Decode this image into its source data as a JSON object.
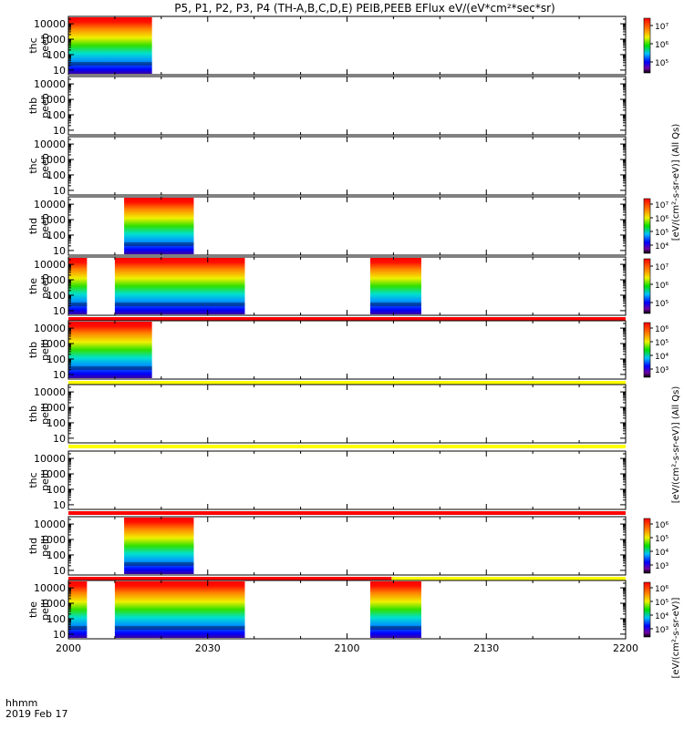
{
  "title": "P5, P1, P2, P3, P4 (TH-A,B,C,D,E) PEIB,PEEB EFlux eV/(eV*cm²*sec*sr)",
  "footer": {
    "line1": "hhmm",
    "line2": "2019 Feb 17"
  },
  "colorbar_caption": "[eV/(cm²-s-sr-eV)]",
  "colorbar_caption_all": "[eV/(cm²-s-sr-eV)] (All Qs)",
  "chart_data": {
    "type": "heatmap",
    "x_axis": {
      "range": [
        "2000",
        "2200"
      ],
      "ticks": [
        "2000",
        "2030",
        "2100",
        "2130",
        "2200"
      ]
    },
    "y_axis": {
      "scale": "log",
      "range": [
        5,
        30000
      ],
      "ticks": [
        "10",
        "100",
        "1000",
        "10000"
      ]
    },
    "panels": [
      {
        "probe": "thc",
        "product": "peeb",
        "ylabel": "thc peeb",
        "intervals": [
          [
            "2000",
            "2018"
          ]
        ],
        "colorbar": [
          "10⁵",
          "10⁶",
          "10⁷"
        ],
        "flag_bar": null
      },
      {
        "probe": "thb",
        "product": "peeb",
        "ylabel": "thb peeb",
        "intervals": [],
        "colorbar": null,
        "flag_bar": null
      },
      {
        "probe": "thc",
        "product": "peeb",
        "ylabel": "thc peeb",
        "intervals": [],
        "colorbar": null,
        "flag_bar": null
      },
      {
        "probe": "thd",
        "product": "peeb",
        "ylabel": "thd peeb",
        "intervals": [
          [
            "2012",
            "2027"
          ]
        ],
        "colorbar": [
          "10⁴",
          "10⁵",
          "10⁶",
          "10⁷"
        ],
        "flag_bar": null
      },
      {
        "probe": "the",
        "product": "peeb",
        "ylabel": "the peeb",
        "intervals": [
          [
            "2000",
            "2004"
          ],
          [
            "2010",
            "2038"
          ],
          [
            "2105",
            "2116"
          ]
        ],
        "colorbar": [
          "10⁵",
          "10⁶",
          "10⁷"
        ],
        "flag_bar": "red"
      },
      {
        "probe": "thb",
        "product": "peib",
        "ylabel": "thb peib",
        "intervals": [
          [
            "2000",
            "2018"
          ]
        ],
        "colorbar": [
          "10³",
          "10⁴",
          "10⁵",
          "10⁶"
        ],
        "flag_bar": "yellow"
      },
      {
        "probe": "thb",
        "product": "peib",
        "ylabel": "thb peib",
        "intervals": [],
        "colorbar": null,
        "flag_bar": "yellow"
      },
      {
        "probe": "thc",
        "product": "peib",
        "ylabel": "thc peib",
        "intervals": [],
        "colorbar": null,
        "flag_bar": "red"
      },
      {
        "probe": "thd",
        "product": "peib",
        "ylabel": "thd peib",
        "intervals": [
          [
            "2012",
            "2027"
          ]
        ],
        "colorbar": [
          "10³",
          "10⁴",
          "10⁵",
          "10⁶"
        ],
        "flag_bar": "red-yellow"
      },
      {
        "probe": "the",
        "product": "peib",
        "ylabel": "the peib",
        "intervals": [
          [
            "2000",
            "2004"
          ],
          [
            "2010",
            "2038"
          ],
          [
            "2105",
            "2116"
          ]
        ],
        "colorbar": [
          "10³",
          "10⁴",
          "10⁵",
          "10⁶"
        ],
        "flag_bar": null
      }
    ]
  }
}
